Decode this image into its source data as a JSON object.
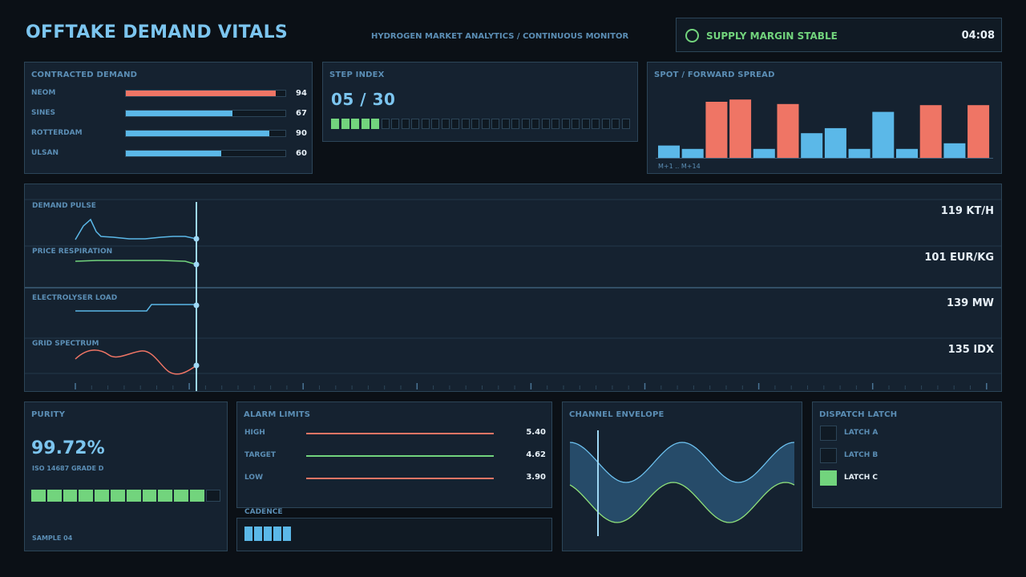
{
  "header": {
    "title": "OFFTAKE DEMAND VITALS",
    "subtitle": "HYDROGEN MARKET ANALYTICS / CONTINUOUS MONITOR",
    "status_text": "SUPPLY MARGIN STABLE",
    "clock": "04:08"
  },
  "contracted_demand": {
    "label": "CONTRACTED DEMAND",
    "rows": [
      {
        "name": "NEOM",
        "value": "94",
        "fraction": 0.94,
        "color": "#ef7565"
      },
      {
        "name": "SINES",
        "value": "67",
        "fraction": 0.67,
        "color": "#5bb8e8"
      },
      {
        "name": "ROTTERDAM",
        "value": "90",
        "fraction": 0.9,
        "color": "#5bb8e8"
      },
      {
        "name": "ULSAN",
        "value": "60",
        "fraction": 0.6,
        "color": "#5bb8e8"
      }
    ]
  },
  "step_index": {
    "label": "STEP INDEX",
    "value": "05 / 30",
    "current": 5,
    "total": 30
  },
  "spread": {
    "label": "SPOT / FORWARD SPREAD",
    "range_label": "M+1 .. M+14",
    "bars": [
      {
        "value": 0.22,
        "color": "#5bb8e8"
      },
      {
        "value": 0.16,
        "color": "#5bb8e8"
      },
      {
        "value": 1.0,
        "color": "#ef7565"
      },
      {
        "value": 1.04,
        "color": "#ef7565"
      },
      {
        "value": 0.16,
        "color": "#5bb8e8"
      },
      {
        "value": 0.96,
        "color": "#ef7565"
      },
      {
        "value": 0.44,
        "color": "#5bb8e8"
      },
      {
        "value": 0.53,
        "color": "#5bb8e8"
      },
      {
        "value": 0.16,
        "color": "#5bb8e8"
      },
      {
        "value": 0.82,
        "color": "#5bb8e8"
      },
      {
        "value": 0.16,
        "color": "#5bb8e8"
      },
      {
        "value": 0.94,
        "color": "#ef7565"
      },
      {
        "value": 0.26,
        "color": "#5bb8e8"
      },
      {
        "value": 0.94,
        "color": "#ef7565"
      }
    ]
  },
  "traces": [
    {
      "label": "DEMAND PULSE",
      "value": "119 KT/H",
      "color": "#5bb8e8"
    },
    {
      "label": "PRICE RESPIRATION",
      "value": "101 EUR/KG",
      "color": "#72d47d"
    },
    {
      "label": "ELECTROLYSER LOAD",
      "value": "139 MW",
      "color": "#5bb8e8"
    },
    {
      "label": "GRID SPECTRUM",
      "value": "135 IDX",
      "color": "#ef7565"
    }
  ],
  "purity": {
    "label": "PURITY",
    "value": "99.72%",
    "grade": "ISO 14687 GRADE D",
    "sample": "SAMPLE 04",
    "segments_on": 11,
    "segments_total": 12
  },
  "alarm_limits": {
    "label": "ALARM LIMITS",
    "rows": [
      {
        "name": "HIGH",
        "value": "5.40",
        "color": "#ef7565"
      },
      {
        "name": "TARGET",
        "value": "4.62",
        "color": "#72d47d"
      },
      {
        "name": "LOW",
        "value": "3.90",
        "color": "#ef7565"
      }
    ]
  },
  "cadence": {
    "label": "CADENCE",
    "count": 5
  },
  "envelope": {
    "label": "CHANNEL ENVELOPE"
  },
  "dispatch": {
    "label": "DISPATCH LATCH",
    "latches": [
      {
        "name": "LATCH A",
        "on": false
      },
      {
        "name": "LATCH B",
        "on": false
      },
      {
        "name": "LATCH C",
        "on": true
      }
    ]
  },
  "colors": {
    "accent": "#7cc5ef",
    "ok": "#72d47d",
    "alert": "#ef7565",
    "blue": "#5bb8e8"
  }
}
